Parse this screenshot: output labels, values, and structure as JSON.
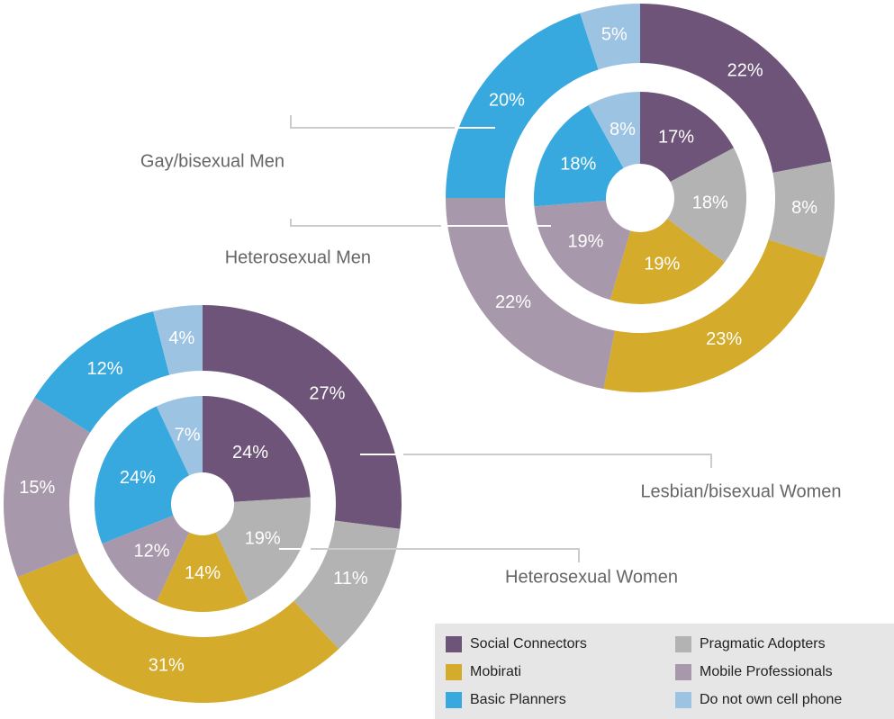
{
  "chart_data": [
    {
      "type": "donut",
      "series": [
        {
          "name": "Gay/bisexual Men",
          "values": [
            22,
            8,
            23,
            22,
            20,
            5
          ],
          "value_labels": [
            "22%",
            "8%",
            "23%",
            "22%",
            "20%",
            "5%"
          ]
        },
        {
          "name": "Heterosexual Men",
          "values": [
            17,
            18,
            19,
            19,
            18,
            8
          ],
          "value_labels": [
            "17%",
            "18%",
            "19%",
            "19%",
            "18%",
            "8%"
          ]
        }
      ]
    },
    {
      "type": "donut",
      "series": [
        {
          "name": "Lesbian/bisexual Women",
          "values": [
            27,
            11,
            31,
            15,
            12,
            4
          ],
          "value_labels": [
            "27%",
            "11%",
            "31%",
            "15%",
            "12%",
            "4%"
          ]
        },
        {
          "name": "Heterosexual Women",
          "values": [
            24,
            19,
            14,
            12,
            24,
            7
          ],
          "value_labels": [
            "24%",
            "19%",
            "14%",
            "12%",
            "24%",
            "7%"
          ]
        }
      ]
    }
  ],
  "legend": {
    "labels": [
      "Social Connectors",
      "Pragmatic Adopters",
      "Mobirati",
      "Mobile Professionals",
      "Basic Planners",
      "Do not own cell phone"
    ],
    "colors": [
      "#6e5478",
      "#b3b3b3",
      "#d4ab2b",
      "#a898ab",
      "#37a9df",
      "#9dc3e3"
    ]
  }
}
